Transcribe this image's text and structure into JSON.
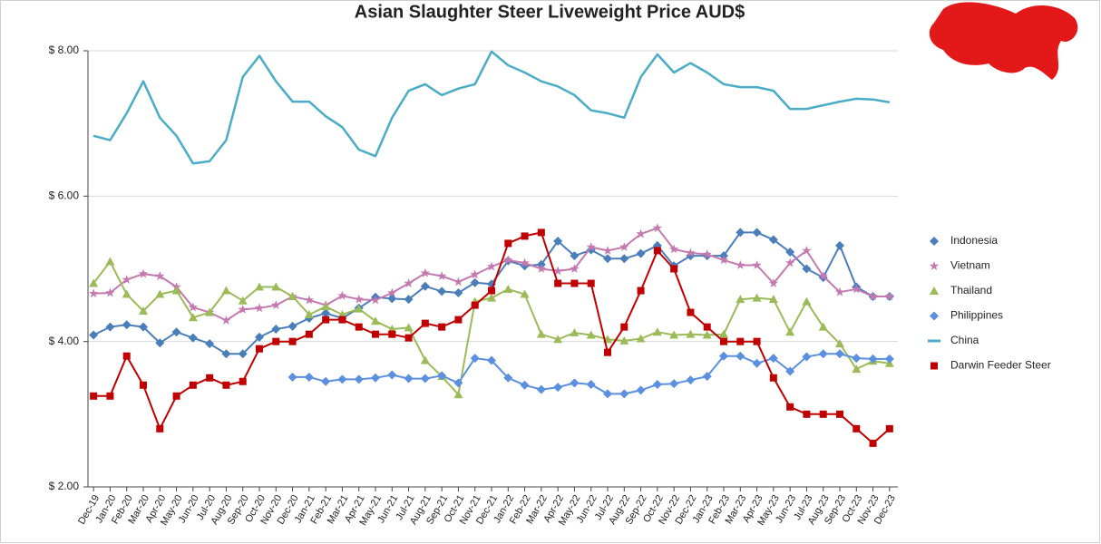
{
  "chart_data": {
    "type": "line",
    "title": "Asian Slaughter Steer Liveweight Price AUD$",
    "categories": [
      "Dec-19",
      "Jan-20",
      "Feb-20",
      "Mar-20",
      "Apr-20",
      "May-20",
      "Jun-20",
      "Jul-20",
      "Aug-20",
      "Sep-20",
      "Oct-20",
      "Nov-20",
      "Dec-20",
      "Jan-21",
      "Feb-21",
      "Mar-21",
      "Apr-21",
      "May-21",
      "Jun-21",
      "Jul-21",
      "Aug-21",
      "Sep-21",
      "Oct-21",
      "Nov-21",
      "Dec-21",
      "Jan-22",
      "Feb-22",
      "Mar-22",
      "Apr-22",
      "May-22",
      "Jun-22",
      "Jul-22",
      "Aug-22",
      "Sep-22",
      "Oct-22",
      "Nov-22",
      "Dec-22",
      "Jan-23",
      "Feb-23",
      "Mar-23",
      "Apr-23",
      "May-23",
      "Jun-23",
      "Jul-23",
      "Aug-23",
      "Sep-23",
      "Oct-23",
      "Nov-23",
      "Dec-23"
    ],
    "series": [
      {
        "name": "Indonesia",
        "color": "#4a7ebb",
        "marker": "diamond",
        "values": [
          4.09,
          4.2,
          4.23,
          4.2,
          3.98,
          4.13,
          4.05,
          3.97,
          3.83,
          3.83,
          4.06,
          4.17,
          4.21,
          4.32,
          4.39,
          4.32,
          4.46,
          4.61,
          4.59,
          4.58,
          4.76,
          4.69,
          4.67,
          4.81,
          4.79,
          5.11,
          5.04,
          5.06,
          5.38,
          5.18,
          5.26,
          5.14,
          5.14,
          5.21,
          5.32,
          5.04,
          5.18,
          5.18,
          5.18,
          5.5,
          5.5,
          5.4,
          5.23,
          5.0,
          4.88,
          5.32,
          4.75,
          4.62,
          4.62
        ]
      },
      {
        "name": "Vietnam",
        "color": "#c479b0",
        "marker": "star",
        "values": [
          4.66,
          4.67,
          4.85,
          4.93,
          4.9,
          4.75,
          4.47,
          4.4,
          4.29,
          4.44,
          4.46,
          4.5,
          4.62,
          4.57,
          4.5,
          4.63,
          4.58,
          4.57,
          4.67,
          4.8,
          4.94,
          4.9,
          4.82,
          4.92,
          5.03,
          5.12,
          5.08,
          5.0,
          4.97,
          5.0,
          5.3,
          5.25,
          5.3,
          5.48,
          5.56,
          5.27,
          5.22,
          5.2,
          5.12,
          5.05,
          5.05,
          4.8,
          5.08,
          5.25,
          4.9,
          4.68,
          4.72,
          4.62,
          4.62
        ]
      },
      {
        "name": "Thailand",
        "color": "#9bbb59",
        "marker": "triangle",
        "values": [
          4.8,
          5.1,
          4.65,
          4.42,
          4.65,
          4.7,
          4.33,
          4.4,
          4.7,
          4.56,
          4.75,
          4.75,
          4.62,
          4.37,
          4.48,
          4.37,
          4.45,
          4.28,
          4.17,
          4.19,
          3.74,
          3.52,
          3.27,
          4.55,
          4.6,
          4.72,
          4.65,
          4.1,
          4.03,
          4.12,
          4.09,
          4.03,
          4.01,
          4.04,
          4.13,
          4.09,
          4.1,
          4.09,
          4.1,
          4.58,
          4.6,
          4.58,
          4.13,
          4.55,
          4.2,
          3.97,
          3.62,
          3.73,
          3.7
        ]
      },
      {
        "name": "Philippines",
        "color": "#5b8fe0",
        "marker": "diamond",
        "values": [
          null,
          null,
          null,
          null,
          null,
          null,
          null,
          null,
          null,
          null,
          null,
          null,
          3.51,
          3.51,
          3.45,
          3.48,
          3.48,
          3.5,
          3.54,
          3.49,
          3.49,
          3.53,
          3.43,
          3.77,
          3.74,
          3.5,
          3.4,
          3.34,
          3.37,
          3.43,
          3.41,
          3.28,
          3.28,
          3.33,
          3.41,
          3.42,
          3.47,
          3.52,
          3.8,
          3.8,
          3.7,
          3.77,
          3.59,
          3.79,
          3.83,
          3.83,
          3.77,
          3.76,
          3.76
        ]
      },
      {
        "name": "China",
        "color": "#4bacc6",
        "marker": "none",
        "values": [
          6.83,
          6.77,
          7.14,
          7.58,
          7.08,
          6.83,
          6.45,
          6.48,
          6.77,
          7.64,
          7.93,
          7.58,
          7.3,
          7.3,
          7.1,
          6.95,
          6.64,
          6.55,
          7.08,
          7.45,
          7.54,
          7.39,
          7.48,
          7.54,
          7.99,
          7.8,
          7.7,
          7.58,
          7.51,
          7.39,
          7.18,
          7.14,
          7.08,
          7.64,
          7.95,
          7.7,
          7.83,
          7.7,
          7.54,
          7.5,
          7.5,
          7.45,
          7.2,
          7.2,
          7.25,
          7.3,
          7.34,
          7.33,
          7.29
        ]
      },
      {
        "name": "Darwin Feeder Steer",
        "color": "#c00000",
        "marker": "square",
        "values": [
          3.25,
          3.25,
          3.8,
          3.4,
          2.8,
          3.25,
          3.4,
          3.5,
          3.4,
          3.45,
          3.9,
          4.0,
          4.0,
          4.1,
          4.3,
          4.3,
          4.2,
          4.1,
          4.1,
          4.05,
          4.25,
          4.2,
          4.3,
          4.5,
          4.7,
          5.35,
          5.45,
          5.5,
          4.8,
          4.8,
          4.8,
          3.85,
          4.2,
          4.7,
          5.25,
          5.0,
          4.4,
          4.2,
          4.0,
          4.0,
          4.0,
          3.5,
          3.1,
          3.0,
          3.0,
          3.0,
          2.8,
          2.6,
          2.8
        ]
      }
    ],
    "ylim": [
      2,
      8
    ],
    "yticks": [
      {
        "value": 2,
        "label": "$ 2.00"
      },
      {
        "value": 4,
        "label": "$ 4.00"
      },
      {
        "value": 6,
        "label": "$ 6.00"
      },
      {
        "value": 8,
        "label": "$ 8.00"
      }
    ],
    "grid": true,
    "legend": "right"
  }
}
